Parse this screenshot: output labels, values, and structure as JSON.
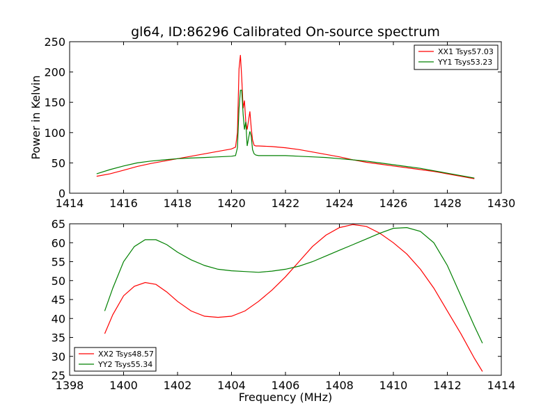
{
  "title": "gl64, ID:86296 Calibrated On-source spectrum",
  "colors": {
    "xx": "#ff0000",
    "yy": "#008000"
  },
  "chart_data": [
    {
      "type": "line",
      "ylabel": "Power in Kelvin",
      "xlabel": "",
      "xlim": [
        1414,
        1430
      ],
      "ylim": [
        0,
        250
      ],
      "xticks": [
        1414,
        1416,
        1418,
        1420,
        1422,
        1424,
        1426,
        1428,
        1430
      ],
      "yticks": [
        0,
        50,
        100,
        150,
        200,
        250
      ],
      "legend_position": "top-right",
      "grid": false,
      "series": [
        {
          "name": "XX1 Tsys57.03",
          "color": "#ff0000",
          "x": [
            1415.0,
            1415.5,
            1416.0,
            1416.5,
            1417.0,
            1417.5,
            1418.0,
            1418.5,
            1419.0,
            1419.5,
            1420.0,
            1420.15,
            1420.22,
            1420.28,
            1420.33,
            1420.38,
            1420.43,
            1420.48,
            1420.53,
            1420.58,
            1420.63,
            1420.68,
            1420.73,
            1420.78,
            1420.84,
            1420.9,
            1421.0,
            1421.5,
            1422.0,
            1422.5,
            1423.0,
            1423.5,
            1424.0,
            1424.5,
            1425.0,
            1425.5,
            1426.0,
            1426.5,
            1427.0,
            1427.5,
            1428.0,
            1428.5,
            1429.0
          ],
          "y": [
            28,
            32,
            38,
            44,
            49,
            53,
            57,
            61,
            65,
            69,
            73,
            76,
            100,
            205,
            228,
            190,
            140,
            153,
            118,
            105,
            120,
            135,
            108,
            88,
            79,
            78,
            78,
            77,
            75,
            72,
            68,
            64,
            60,
            55,
            51,
            48,
            45,
            42,
            39,
            36,
            32,
            28,
            24
          ]
        },
        {
          "name": "YY1 Tsys53.23",
          "color": "#008000",
          "x": [
            1415.0,
            1415.5,
            1416.0,
            1416.5,
            1417.0,
            1417.5,
            1418.0,
            1418.5,
            1419.0,
            1419.5,
            1420.0,
            1420.15,
            1420.22,
            1420.28,
            1420.33,
            1420.38,
            1420.43,
            1420.48,
            1420.53,
            1420.58,
            1420.63,
            1420.68,
            1420.73,
            1420.78,
            1420.84,
            1420.9,
            1421.0,
            1421.5,
            1422.0,
            1422.5,
            1423.0,
            1423.5,
            1424.0,
            1424.5,
            1425.0,
            1425.5,
            1426.0,
            1426.5,
            1427.0,
            1427.5,
            1428.0,
            1428.5,
            1429.0
          ],
          "y": [
            32,
            39,
            45,
            50,
            53,
            55,
            57,
            58,
            59,
            60,
            61,
            62,
            75,
            140,
            170,
            170,
            130,
            105,
            118,
            78,
            90,
            102,
            95,
            72,
            65,
            63,
            62,
            62,
            62,
            61,
            60,
            59,
            57,
            55,
            53,
            50,
            47,
            44,
            41,
            37,
            33,
            29,
            25
          ]
        }
      ]
    },
    {
      "type": "line",
      "xlabel": "Frequency (MHz)",
      "ylabel": "",
      "xlim": [
        1398,
        1414
      ],
      "ylim": [
        25,
        65
      ],
      "xticks": [
        1398,
        1400,
        1402,
        1404,
        1406,
        1408,
        1410,
        1412,
        1414
      ],
      "yticks": [
        25,
        30,
        35,
        40,
        45,
        50,
        55,
        60,
        65
      ],
      "legend_position": "bottom-left",
      "grid": false,
      "series": [
        {
          "name": "XX2 Tsys48.57",
          "color": "#ff0000",
          "x": [
            1399.3,
            1399.6,
            1400.0,
            1400.4,
            1400.8,
            1401.2,
            1401.6,
            1402.0,
            1402.5,
            1403.0,
            1403.5,
            1404.0,
            1404.5,
            1405.0,
            1405.5,
            1406.0,
            1406.5,
            1407.0,
            1407.5,
            1408.0,
            1408.5,
            1409.0,
            1409.5,
            1410.0,
            1410.5,
            1411.0,
            1411.5,
            1412.0,
            1412.5,
            1413.0,
            1413.3
          ],
          "y": [
            36.0,
            41.0,
            46.0,
            48.5,
            49.5,
            49.0,
            47.0,
            44.5,
            42.0,
            40.6,
            40.3,
            40.6,
            42.0,
            44.5,
            47.5,
            51.0,
            55.0,
            59.0,
            62.0,
            64.0,
            64.8,
            64.3,
            62.5,
            60.0,
            57.0,
            53.0,
            48.0,
            42.0,
            36.0,
            29.5,
            26.0
          ]
        },
        {
          "name": "YY2 Tsys55.34",
          "color": "#008000",
          "x": [
            1399.3,
            1399.6,
            1400.0,
            1400.4,
            1400.8,
            1401.2,
            1401.6,
            1402.0,
            1402.5,
            1403.0,
            1403.5,
            1404.0,
            1404.5,
            1405.0,
            1405.5,
            1406.0,
            1406.5,
            1407.0,
            1407.5,
            1408.0,
            1408.5,
            1409.0,
            1409.5,
            1410.0,
            1410.5,
            1411.0,
            1411.5,
            1412.0,
            1412.5,
            1413.0,
            1413.3
          ],
          "y": [
            42.0,
            48.0,
            55.0,
            59.0,
            60.8,
            60.8,
            59.5,
            57.5,
            55.5,
            54.0,
            53.0,
            52.6,
            52.4,
            52.2,
            52.5,
            53.0,
            53.8,
            55.0,
            56.5,
            58.0,
            59.5,
            61.0,
            62.5,
            63.8,
            64.0,
            63.0,
            60.0,
            54.0,
            46.0,
            38.0,
            33.5
          ]
        }
      ]
    }
  ]
}
